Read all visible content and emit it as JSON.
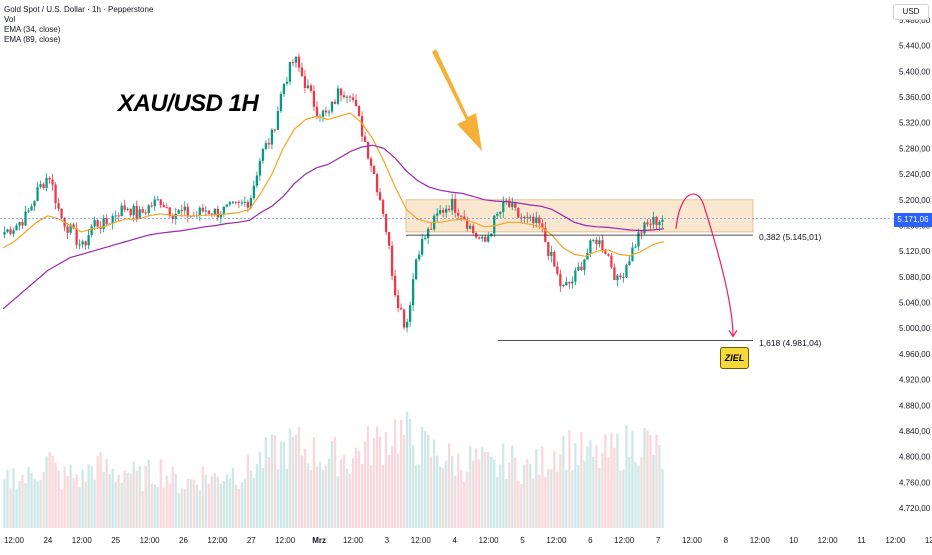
{
  "header": {
    "symbol_title": "Gold Spot / U.S. Dollar · 1h · Pepperstone",
    "indicators": [
      "Vol",
      "EMA (34, close)",
      "EMA (89, close)"
    ],
    "annotation_title": "XAU/USD 1H",
    "unit": "USD"
  },
  "price_axis": {
    "ticks": [
      "5.480,00",
      "5.440,00",
      "5.400,00",
      "5.360,00",
      "5.320,00",
      "5.280,00",
      "5.240,00",
      "5.200,00",
      "5.160,00",
      "5.120,00",
      "5.080,00",
      "5.040,00",
      "5.000,00",
      "4.960,00",
      "4.920,00",
      "4.880,00",
      "4.840,00",
      "4.800,00",
      "4.760,00",
      "4.720,00"
    ],
    "current_price_label": "5.171,06"
  },
  "time_axis": {
    "ticks": [
      "12:00",
      "24",
      "12:00",
      "25",
      "12:00",
      "26",
      "12:00",
      "27",
      "12:00",
      "Mrz",
      "12:00",
      "3",
      "12:00",
      "4",
      "12:00",
      "5",
      "12:00",
      "6",
      "12:00",
      "7",
      "12:00",
      "8",
      "12:00",
      "10",
      "12:00",
      "11",
      "12:00",
      "12"
    ]
  },
  "levels": {
    "fib_0382_label": "0,382 (5.145,01)",
    "fib_1618_label": "1,618 (4.981,04)",
    "target_label": "ZIEL"
  },
  "colors": {
    "up": "#089981",
    "down": "#f23645",
    "ema34": "#f5a623",
    "ema89": "#9c27b0",
    "zone_fill": "#f9e3c8",
    "arrow": "#f5a623",
    "projection": "#e91e63",
    "current_price": "#2962ff"
  },
  "chart_data": {
    "type": "candlestick",
    "title": "",
    "symbol": "XAUUSD",
    "timeframe": "1h",
    "x_range_labels": [
      "24",
      "12"
    ],
    "y_range": [
      4720,
      5480
    ],
    "current_price": 5171.06,
    "resistance_zone": [
      5150,
      5200
    ],
    "fib_levels": [
      {
        "ratio": "0,382",
        "price": 5145.01
      },
      {
        "ratio": "1,618",
        "price": 4981.04
      }
    ],
    "target": {
      "label": "ZIEL",
      "price": 4981.04
    },
    "close_path": [
      5150,
      5160,
      5175,
      5215,
      5240,
      5175,
      5150,
      5125,
      5165,
      5160,
      5180,
      5190,
      5175,
      5190,
      5200,
      5180,
      5180,
      5175,
      5185,
      5180,
      5185,
      5190,
      5200,
      5270,
      5300,
      5380,
      5420,
      5380,
      5340,
      5330,
      5370,
      5370,
      5310,
      5250,
      5180,
      5060,
      5000,
      5120,
      5150,
      5180,
      5195,
      5180,
      5150,
      5130,
      5170,
      5195,
      5175,
      5165,
      5160,
      5110,
      5060,
      5075,
      5110,
      5140,
      5120,
      5070,
      5110,
      5150,
      5165,
      5171
    ],
    "ema34_path": [
      5125,
      5135,
      5150,
      5165,
      5175,
      5170,
      5160,
      5150,
      5155,
      5158,
      5165,
      5170,
      5170,
      5175,
      5178,
      5176,
      5175,
      5175,
      5176,
      5177,
      5178,
      5180,
      5185,
      5210,
      5240,
      5280,
      5310,
      5325,
      5330,
      5325,
      5330,
      5335,
      5320,
      5295,
      5260,
      5220,
      5185,
      5170,
      5165,
      5165,
      5168,
      5170,
      5165,
      5158,
      5160,
      5165,
      5165,
      5162,
      5158,
      5145,
      5125,
      5115,
      5112,
      5120,
      5122,
      5115,
      5113,
      5120,
      5130,
      5135
    ],
    "ema89_path": [
      5030,
      5045,
      5060,
      5075,
      5090,
      5100,
      5110,
      5115,
      5120,
      5125,
      5130,
      5135,
      5140,
      5145,
      5148,
      5150,
      5152,
      5155,
      5158,
      5160,
      5163,
      5165,
      5168,
      5180,
      5190,
      5205,
      5225,
      5240,
      5250,
      5255,
      5265,
      5275,
      5282,
      5285,
      5280,
      5265,
      5245,
      5230,
      5220,
      5215,
      5212,
      5210,
      5205,
      5200,
      5198,
      5197,
      5195,
      5192,
      5190,
      5185,
      5175,
      5165,
      5160,
      5158,
      5157,
      5155,
      5153,
      5152,
      5153,
      5155
    ],
    "volume_relative": [
      0.45,
      0.55,
      0.5,
      0.6,
      0.7,
      0.5,
      0.55,
      0.5,
      0.65,
      0.6,
      0.55,
      0.6,
      0.5,
      0.55,
      0.6,
      0.5,
      0.45,
      0.5,
      0.55,
      0.5,
      0.6,
      0.55,
      0.6,
      0.7,
      0.75,
      0.8,
      0.85,
      0.8,
      0.75,
      0.7,
      0.75,
      0.7,
      0.8,
      0.85,
      0.9,
      1.0,
      0.95,
      0.85,
      0.8,
      0.75,
      0.7,
      0.65,
      0.7,
      0.65,
      0.6,
      0.7,
      0.65,
      0.6,
      0.65,
      0.75,
      0.85,
      0.8,
      0.75,
      0.7,
      0.75,
      0.8,
      0.85,
      0.9,
      0.85,
      0.7
    ],
    "projection": {
      "from_price": 5155,
      "peak_price": 5200,
      "to_price": 4981.04
    }
  }
}
